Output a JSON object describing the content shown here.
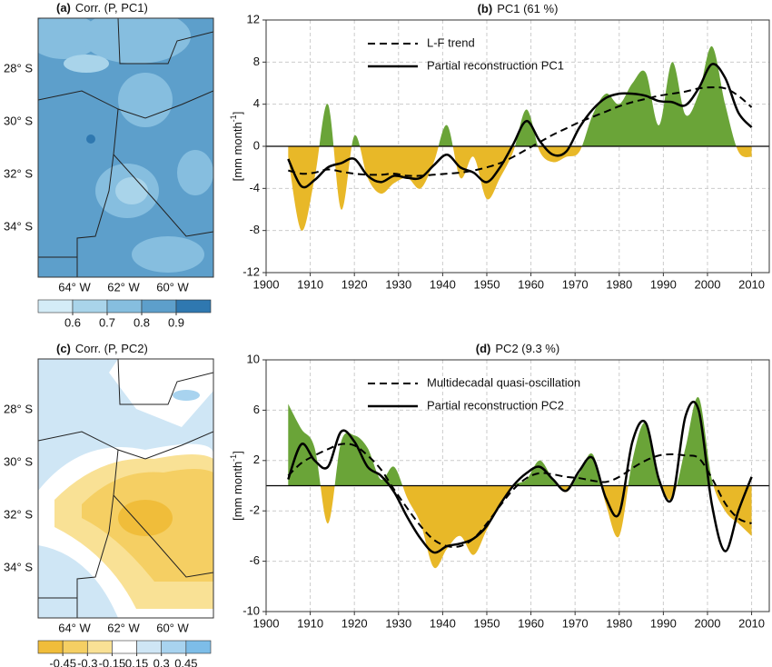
{
  "chart_data": [
    {
      "type": "line",
      "panel": "(b)",
      "title": "PC1 (61 %)",
      "y_label": "[mm month",
      "y_label_sup": "-1",
      "y_label_end": "]",
      "x": [
        1905,
        1908,
        1911,
        1914,
        1917,
        1920,
        1923,
        1926,
        1929,
        1932,
        1935,
        1938,
        1941,
        1944,
        1947,
        1950,
        1953,
        1956,
        1959,
        1962,
        1965,
        1968,
        1971,
        1974,
        1977,
        1980,
        1983,
        1986,
        1989,
        1992,
        1995,
        1998,
        2001,
        2004,
        2007,
        2010
      ],
      "anomaly": {
        "colors": [
          "#6aa438",
          "#e8b828"
        ],
        "values": [
          -1,
          -8,
          -3,
          4,
          -6,
          1,
          -3,
          -4.5,
          -3.5,
          -3,
          -4,
          -1.5,
          2,
          -3,
          -1,
          -5,
          -3,
          -0.5,
          3.5,
          -0.5,
          -1.5,
          -1,
          -0.5,
          3,
          5,
          4,
          6,
          7,
          2,
          8,
          3,
          5,
          9.5,
          4,
          -0.5,
          -1
        ]
      },
      "series": [
        {
          "name": "L-F trend",
          "color": "#000000",
          "dash": true,
          "values": [
            -2.3,
            -2.6,
            -2.5,
            -2.2,
            -2.4,
            -2.6,
            -2.7,
            -2.7,
            -2.6,
            -2.8,
            -2.8,
            -2.7,
            -2.6,
            -2.5,
            -2.3,
            -2,
            -1.6,
            -1,
            -0.3,
            0.4,
            1.1,
            1.7,
            2.3,
            2.8,
            3.3,
            3.8,
            4.2,
            4.5,
            4.8,
            5,
            5.2,
            5.5,
            5.6,
            5.5,
            4.8,
            3.7
          ]
        },
        {
          "name": "Partial  reconstruction PC1",
          "color": "#000000",
          "dash": false,
          "values": [
            -1.2,
            -3.8,
            -3.2,
            -2,
            -1.6,
            -1.2,
            -2.8,
            -3.4,
            -2.8,
            -3,
            -3,
            -1.8,
            -0.8,
            -2,
            -2.5,
            -3.4,
            -2,
            0.2,
            2.4,
            0.5,
            -0.8,
            -0.5,
            1.8,
            3.5,
            4.6,
            5,
            5,
            4.8,
            4.3,
            4.2,
            3.9,
            5.5,
            7.8,
            6.5,
            3.2,
            1.8
          ]
        }
      ],
      "xlim": [
        1900,
        2014
      ],
      "xticks": [
        1900,
        1910,
        1920,
        1930,
        1940,
        1950,
        1960,
        1970,
        1980,
        1990,
        2000,
        2010
      ],
      "ylim": [
        -12,
        12
      ],
      "yticks": [
        -12,
        -8,
        -4,
        0,
        4,
        8,
        12
      ],
      "grid": true,
      "legend": "upper left"
    },
    {
      "type": "line",
      "panel": "(d)",
      "title": "PC2 (9.3 %)",
      "y_label": "[mm month",
      "y_label_sup": "-1",
      "y_label_end": "]",
      "x": [
        1905,
        1908,
        1911,
        1914,
        1917,
        1920,
        1923,
        1926,
        1929,
        1932,
        1935,
        1938,
        1941,
        1944,
        1947,
        1950,
        1953,
        1956,
        1959,
        1962,
        1965,
        1968,
        1971,
        1974,
        1977,
        1980,
        1983,
        1986,
        1989,
        1992,
        1995,
        1998,
        2001,
        2004,
        2007,
        2010
      ],
      "anomaly": {
        "colors": [
          "#6aa438",
          "#e8b828"
        ],
        "values": [
          6.5,
          4.5,
          3,
          -3,
          3.5,
          4,
          3,
          0.5,
          1.5,
          -1,
          -3,
          -6.5,
          -5,
          -4,
          -5.5,
          -3.5,
          -1.5,
          0,
          0.5,
          2,
          0.5,
          -0.5,
          1,
          2.5,
          -1.5,
          -4,
          2,
          5,
          0.5,
          -1,
          3,
          7,
          0.5,
          -2,
          -3,
          -4
        ]
      },
      "series": [
        {
          "name": "Multidecadal quasi-oscillation",
          "color": "#000000",
          "dash": true,
          "values": [
            0.8,
            1.8,
            2.4,
            2.9,
            3.3,
            3.2,
            2.4,
            1.3,
            -0.3,
            -1.8,
            -3.2,
            -4.3,
            -4.8,
            -4.8,
            -4.2,
            -3,
            -1.6,
            -0.3,
            0.6,
            1,
            0.9,
            0.7,
            0.6,
            0.4,
            0.3,
            0.7,
            1.4,
            2,
            2.4,
            2.5,
            2.4,
            2.2,
            0.6,
            -1.4,
            -2.6,
            -3
          ]
        },
        {
          "name": "Partial  reconstruction PC2",
          "color": "#000000",
          "dash": false,
          "values": [
            0.5,
            3.3,
            2,
            1.5,
            4.3,
            3.5,
            1.5,
            0.8,
            -0.5,
            -2.5,
            -4.2,
            -5.3,
            -4.8,
            -4.6,
            -4.2,
            -3.2,
            -1.5,
            0,
            1,
            1.5,
            0.5,
            -0.4,
            1.2,
            2.2,
            -1,
            -2.2,
            3.5,
            5,
            0.5,
            -1,
            5.5,
            6,
            -1.5,
            -5.2,
            -2,
            0.7
          ]
        }
      ],
      "xlim": [
        1900,
        2014
      ],
      "xticks": [
        1900,
        1910,
        1920,
        1930,
        1940,
        1950,
        1960,
        1970,
        1980,
        1990,
        2000,
        2010
      ],
      "ylim": [
        -10,
        10
      ],
      "yticks": [
        -10,
        -6,
        -2,
        2,
        6,
        10
      ],
      "grid": true,
      "legend": "upper left"
    }
  ],
  "maps": [
    {
      "panel": "(a)",
      "title": "Corr. (P, PC1)",
      "lat_labels": [
        "28° S",
        "30° S",
        "32° S",
        "34° S"
      ],
      "lon_labels": [
        "64° W",
        "62° W",
        "60° W"
      ],
      "colorbar_ticks": [
        0.6,
        0.7,
        0.8,
        0.9
      ],
      "colors": [
        "#d4ecf7",
        "#a9d4ea",
        "#86bedf",
        "#5d9fcb",
        "#2f78b0"
      ]
    },
    {
      "panel": "(c)",
      "title": "Corr. (P, PC2)",
      "lat_labels": [
        "28° S",
        "30° S",
        "32° S",
        "34° S"
      ],
      "lon_labels": [
        "64° W",
        "62° W",
        "60° W"
      ],
      "colorbar_ticks": [
        -0.45,
        -0.3,
        -0.15,
        0.15,
        0.3,
        0.45
      ],
      "colors": [
        "#f0bd3a",
        "#f5cf63",
        "#f9e195",
        "#ffffff",
        "#cfe6f5",
        "#a8d3ef",
        "#7dbde8"
      ]
    }
  ]
}
